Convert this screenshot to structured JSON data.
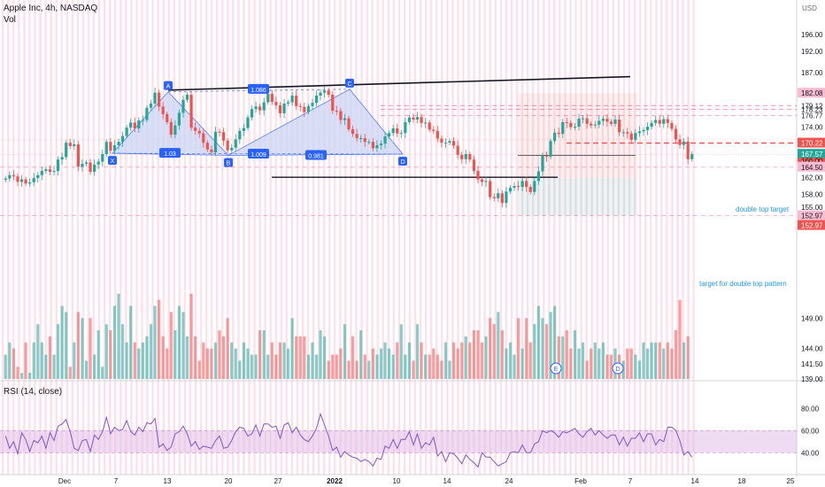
{
  "header": {
    "title": "Apple Inc, 4h, NASDAQ",
    "volume_label": "Vol",
    "currency": "USD",
    "rsi_label": "RSI (14, close)"
  },
  "annotations": {
    "double_top_target": "double top target",
    "target_double_top_pattern": "target for double top pattern",
    "harmonic_points": [
      "X",
      "A",
      "B",
      "C",
      "D"
    ],
    "harmonic_ratios": [
      "1.086",
      "1.03",
      "1.009",
      "0.981"
    ],
    "event_markers": [
      "E",
      "D"
    ]
  },
  "colors": {
    "up": "#26a69a",
    "down": "#ef5350",
    "rsi_line": "#7e57c2",
    "harmonic_fill": "#cfd8f5",
    "harmonic_stroke": "#2962ff",
    "label_blue": "#2962ff",
    "trendline": "#131722",
    "dashed_level": "#ef5350",
    "session_shade": "#f8bbd0"
  },
  "chart_data": {
    "type": "candlestick",
    "price_axis_ticks": [
      "196.00",
      "192.00",
      "187.00",
      "182.08",
      "179.12",
      "178.23",
      "176.77",
      "174.00",
      "170.22",
      "167.57",
      "167.53",
      "166.00",
      "164.50",
      "162.00",
      "158.00",
      "155.00",
      "152.97",
      "152.97",
      "149.00",
      "144.00",
      "141.50",
      "139.00"
    ],
    "price_tags": [
      {
        "value": "182.08",
        "color": "#f8bbd0",
        "text_color": "#131722"
      },
      {
        "value": "170.22",
        "color": "#ef5350",
        "text_color": "#ffffff"
      },
      {
        "value": "167.57",
        "color": "#26a69a",
        "text_color": "#ffffff"
      },
      {
        "value": "167.53",
        "color": "#ef5350",
        "text_color": "#ffffff"
      },
      {
        "value": "164.50",
        "color": "#f8bbd0",
        "text_color": "#131722"
      },
      {
        "value": "152.97",
        "color": "#f8bbd0",
        "text_color": "#131722"
      },
      {
        "value": "152.97",
        "color": "#ef5350",
        "text_color": "#ffffff"
      }
    ],
    "rsi_axis_ticks": [
      "80.00",
      "60.00",
      "40.00"
    ],
    "x_axis_ticks": [
      "Dec",
      "7",
      "13",
      "20",
      "27",
      "2022",
      "10",
      "14",
      "24",
      "Feb",
      "7",
      "14",
      "18",
      "25"
    ],
    "price_range": [
      139,
      200
    ],
    "rsi_range": [
      25,
      85
    ],
    "rsi_band": [
      40,
      60
    ],
    "price_series": [
      161.8,
      162.6,
      162.3,
      161.0,
      161.6,
      160.6,
      160.9,
      161.9,
      162.6,
      163.6,
      164.0,
      163.4,
      163.6,
      166.3,
      166.9,
      170.3,
      169.5,
      169.9,
      164.6,
      165.3,
      165.6,
      163.4,
      165.1,
      165.8,
      167.6,
      170.5,
      168.4,
      169.7,
      170.5,
      171.9,
      173.9,
      175.1,
      173.7,
      175.6,
      175.7,
      178.6,
      179.6,
      182.2,
      178.9,
      177.1,
      175.2,
      172.2,
      174.4,
      177.4,
      180.5,
      181.7,
      173.9,
      173.1,
      172.5,
      170.3,
      168.7,
      168.0,
      172.9,
      172.8,
      170.8,
      168.5,
      169.1,
      171.1,
      173.1,
      173.8,
      176.3,
      178.3,
      178.9,
      178.0,
      179.9,
      181.9,
      180.0,
      179.2,
      177.3,
      179.6,
      179.9,
      181.5,
      179.0,
      178.8,
      177.6,
      179.0,
      179.8,
      181.5,
      182.2,
      182.7,
      181.7,
      177.9,
      177.8,
      175.7,
      176.1,
      173.5,
      172.4,
      171.4,
      171.4,
      170.5,
      170.5,
      169.0,
      169.7,
      170.1,
      171.8,
      172.6,
      173.7,
      172.5,
      172.6,
      175.2,
      176.3,
      175.8,
      176.4,
      175.0,
      175.1,
      173.4,
      173.1,
      171.3,
      170.3,
      170.3,
      170.7,
      169.6,
      167.4,
      166.4,
      167.6,
      166.3,
      163.6,
      161.6,
      161.0,
      161.2,
      157.4,
      157.1,
      158.3,
      156.0,
      158.7,
      159.6,
      160.0,
      159.8,
      161.2,
      159.8,
      158.6,
      161.2,
      163.5,
      167.2,
      167.0,
      170.7,
      172.7,
      172.4,
      175.2,
      175.0,
      174.0,
      174.1,
      176.0,
      176.1,
      174.8,
      174.4,
      174.6,
      175.5,
      176.0,
      175.3,
      174.8,
      175.8,
      172.8,
      172.8,
      172.5,
      171.0,
      172.6,
      173.0,
      173.3,
      174.1,
      175.0,
      175.7,
      174.8,
      175.9,
      175.0,
      173.6,
      171.1,
      169.8,
      170.6,
      166.4,
      167.6
    ],
    "volume_series": [
      143,
      145,
      144,
      141,
      140,
      145,
      140,
      145,
      148,
      145,
      143,
      146,
      143,
      148,
      151,
      150,
      141,
      145,
      150,
      149,
      142,
      149,
      143,
      147,
      141,
      148,
      147,
      151,
      153,
      148,
      145,
      151,
      145,
      144,
      145,
      146,
      148,
      151,
      152,
      146,
      144,
      150,
      147,
      151,
      150,
      146,
      153,
      146,
      142,
      145,
      144,
      144,
      145,
      147,
      146,
      149,
      145,
      144,
      142,
      145,
      144,
      143,
      143,
      147,
      147,
      143,
      145,
      143,
      145,
      145,
      144,
      149,
      146,
      146,
      146,
      143,
      145,
      143,
      147,
      146,
      142,
      143,
      143,
      144,
      148,
      142,
      146,
      142,
      147,
      143,
      142,
      144,
      143,
      144,
      145,
      144,
      143,
      145,
      148,
      143,
      145,
      142,
      148,
      145,
      143,
      143,
      144,
      143,
      142,
      145,
      142,
      145,
      144,
      145,
      146,
      145,
      147,
      147,
      145,
      146,
      149,
      148,
      150,
      147,
      144,
      145,
      143,
      149,
      144,
      149,
      145,
      148,
      151,
      149,
      148,
      150,
      151,
      146,
      146,
      147,
      144,
      147,
      144,
      145,
      142,
      144,
      145,
      144,
      145,
      143,
      143,
      144,
      143,
      142,
      144,
      144,
      143,
      142,
      145,
      144,
      145,
      145,
      145,
      144,
      145,
      144,
      147,
      152,
      145,
      146
    ],
    "rsi_series": [
      55,
      44,
      50,
      39,
      58,
      52,
      41,
      51,
      49,
      55,
      44,
      58,
      51,
      64,
      66,
      70,
      59,
      44,
      42,
      51,
      52,
      41,
      56,
      52,
      59,
      72,
      57,
      63,
      60,
      61,
      69,
      59,
      56,
      63,
      59,
      67,
      66,
      71,
      45,
      48,
      42,
      45,
      57,
      59,
      64,
      57,
      46,
      50,
      43,
      46,
      45,
      44,
      51,
      55,
      44,
      45,
      51,
      59,
      63,
      62,
      55,
      57,
      65,
      55,
      66,
      66,
      63,
      64,
      53,
      65,
      67,
      58,
      63,
      56,
      52,
      50,
      55,
      62,
      75,
      65,
      55,
      42,
      45,
      36,
      41,
      38,
      36,
      35,
      32,
      34,
      32,
      28,
      35,
      34,
      46,
      44,
      52,
      44,
      52,
      52,
      59,
      47,
      57,
      44,
      49,
      47,
      54,
      37,
      41,
      32,
      40,
      39,
      35,
      30,
      38,
      34,
      31,
      27,
      40,
      36,
      36,
      32,
      28,
      30,
      32,
      40,
      41,
      40,
      47,
      40,
      40,
      48,
      50,
      60,
      58,
      60,
      58,
      54,
      59,
      58,
      60,
      62,
      57,
      54,
      59,
      62,
      56,
      60,
      56,
      53,
      56,
      56,
      47,
      54,
      46,
      53,
      53,
      58,
      50,
      57,
      57,
      47,
      52,
      50,
      63,
      63,
      60,
      51,
      38,
      41,
      36
    ]
  }
}
